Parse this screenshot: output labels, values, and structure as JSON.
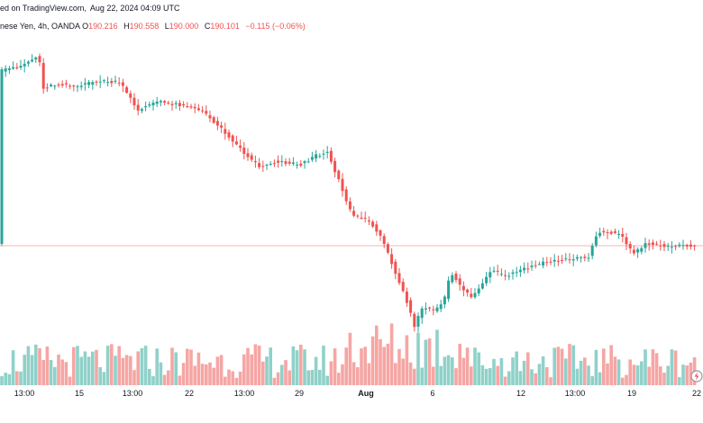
{
  "header": {
    "published_text": "ed on TradingView.com,",
    "timestamp": "Aug 22, 2024 04:09 UTC"
  },
  "symbol": {
    "name": "nese Yen, 4h, OANDA",
    "open_label": "O",
    "open_value": "190.216",
    "high_label": "H",
    "high_value": "190.558",
    "low_label": "L",
    "low_value": "190.000",
    "close_label": "C",
    "close_value": "190.101",
    "change": "−0.115 (−0.06%)"
  },
  "colors": {
    "up": "#26a69a",
    "down": "#ef5350",
    "up_volume": "#8fd1c9",
    "down_volume": "#f5a6a4",
    "last_price_line": "#f7b6b4",
    "axis_text": "#131722"
  },
  "chart_data": {
    "type": "candlestick",
    "x_ticks": [
      "13:00",
      "15",
      "13:00",
      "22",
      "13:00",
      "29",
      "Aug",
      "6",
      "12",
      "13:00",
      "19",
      "22"
    ],
    "bold_ticks": [
      "Aug"
    ],
    "last_price_line": true,
    "grid": false
  }
}
